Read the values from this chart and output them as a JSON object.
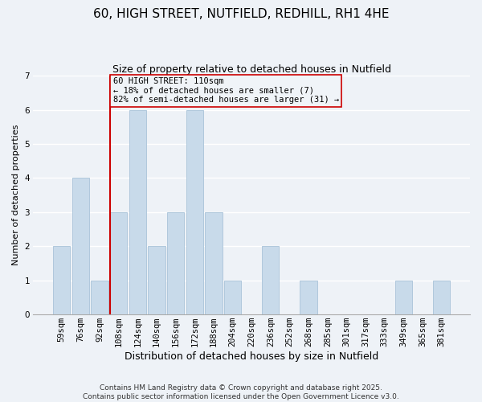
{
  "title": "60, HIGH STREET, NUTFIELD, REDHILL, RH1 4HE",
  "subtitle": "Size of property relative to detached houses in Nutfield",
  "xlabel": "Distribution of detached houses by size in Nutfield",
  "ylabel": "Number of detached properties",
  "bins": [
    "59sqm",
    "76sqm",
    "92sqm",
    "108sqm",
    "124sqm",
    "140sqm",
    "156sqm",
    "172sqm",
    "188sqm",
    "204sqm",
    "220sqm",
    "236sqm",
    "252sqm",
    "268sqm",
    "285sqm",
    "301sqm",
    "317sqm",
    "333sqm",
    "349sqm",
    "365sqm",
    "381sqm"
  ],
  "values": [
    2,
    4,
    1,
    3,
    6,
    2,
    3,
    6,
    3,
    1,
    0,
    2,
    0,
    1,
    0,
    0,
    0,
    0,
    1,
    0,
    1
  ],
  "bar_color": "#c8daea",
  "bar_edge_color": "#b0c8dc",
  "vline_x_index": 3,
  "vline_color": "#cc0000",
  "annotation_lines": [
    "60 HIGH STREET: 110sqm",
    "← 18% of detached houses are smaller (7)",
    "82% of semi-detached houses are larger (31) →"
  ],
  "annotation_box_edge_color": "#cc0000",
  "annotation_box_bg": "#f0f4f8",
  "ylim": [
    0,
    7
  ],
  "yticks": [
    0,
    1,
    2,
    3,
    4,
    5,
    6,
    7
  ],
  "background_color": "#eef2f7",
  "grid_color": "#ffffff",
  "footer_line1": "Contains HM Land Registry data © Crown copyright and database right 2025.",
  "footer_line2": "Contains public sector information licensed under the Open Government Licence v3.0.",
  "title_fontsize": 11,
  "subtitle_fontsize": 9,
  "xlabel_fontsize": 9,
  "ylabel_fontsize": 8,
  "tick_fontsize": 7.5,
  "annotation_fontsize": 7.5,
  "footer_fontsize": 6.5
}
